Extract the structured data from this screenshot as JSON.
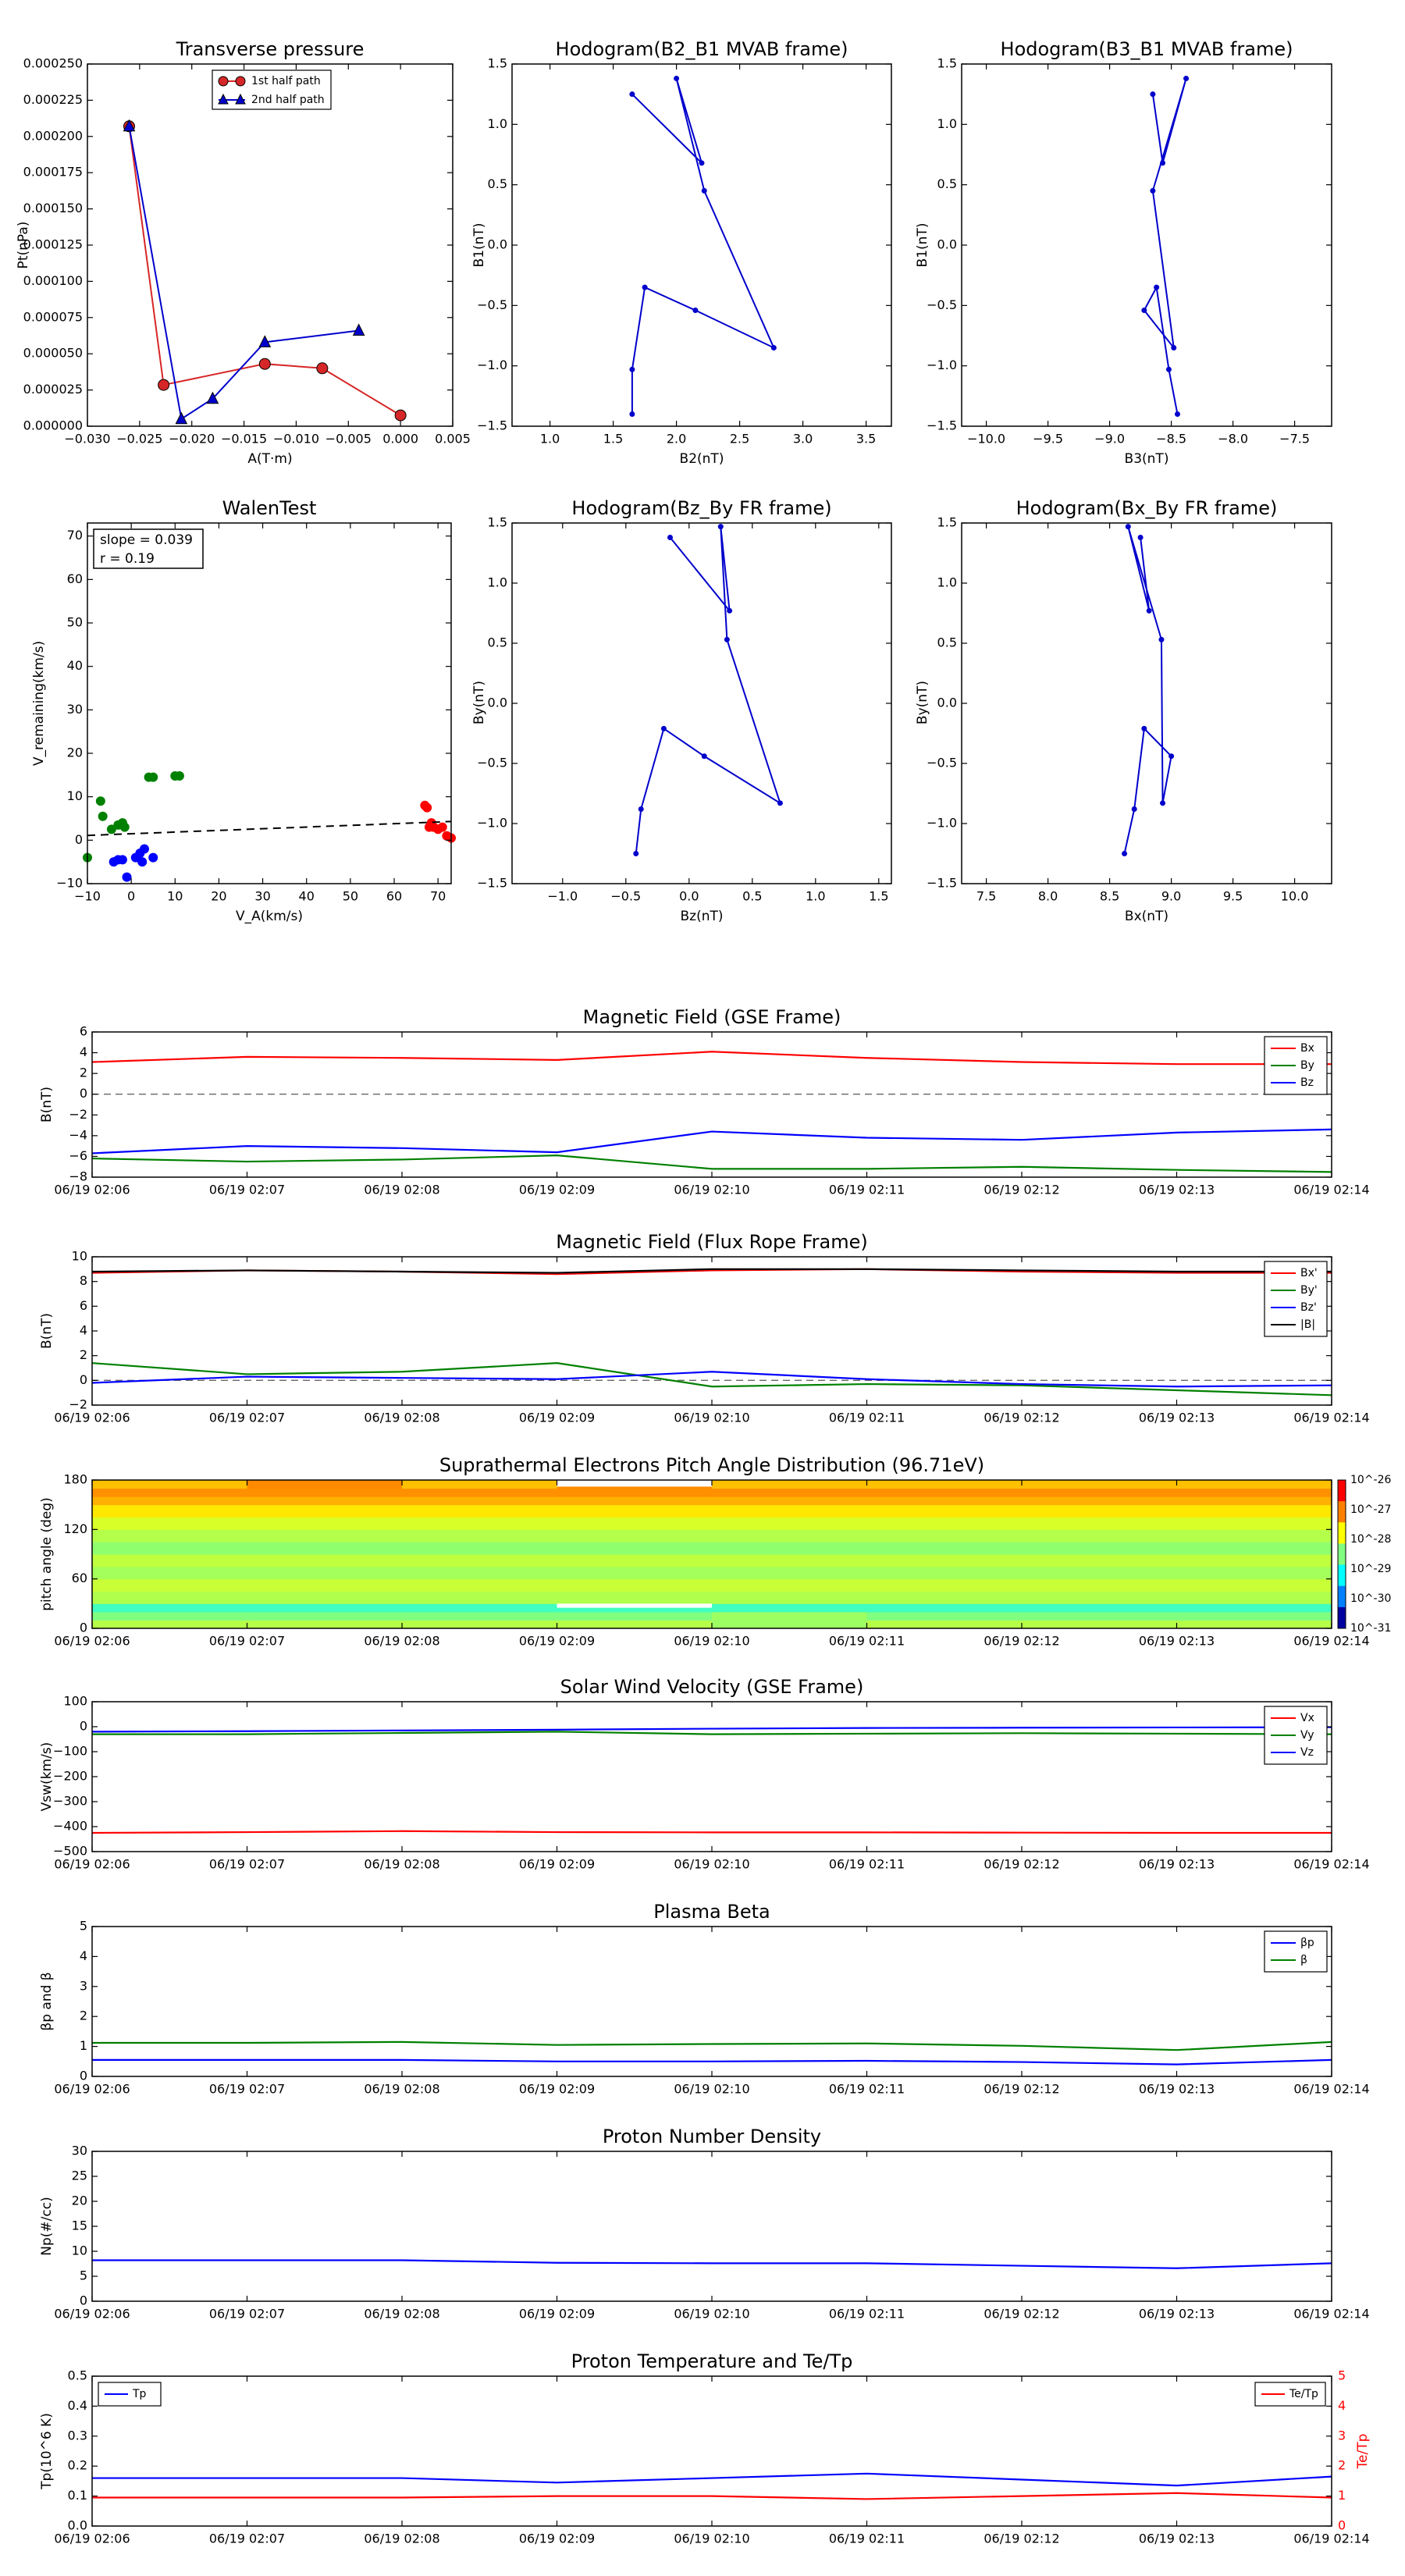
{
  "figure": {
    "background": "#ffffff"
  },
  "chart_data": [
    {
      "id": "tp",
      "type": "scatter",
      "title": "Transverse pressure",
      "xlabel": "A(T·m)",
      "ylabel": "Pt(nPa)",
      "xlim": [
        -0.03,
        0.005
      ],
      "ylim": [
        0,
        0.00025
      ],
      "xticks": [
        -0.03,
        -0.025,
        -0.02,
        -0.015,
        -0.01,
        -0.005,
        0.0,
        0.005
      ],
      "xticklabels": [
        "−0.030",
        "−0.025",
        "−0.020",
        "−0.015",
        "−0.010",
        "−0.005",
        "0.000",
        "0.005"
      ],
      "yticks": [
        0,
        2.5e-05,
        5e-05,
        7.5e-05,
        0.0001,
        0.000125,
        0.00015,
        0.000175,
        0.0002,
        0.000225,
        0.00025
      ],
      "yticklabels": [
        "0.000000",
        "0.000025",
        "0.000050",
        "0.000075",
        "0.000100",
        "0.000125",
        "0.000150",
        "0.000175",
        "0.000200",
        "0.000225",
        "0.000250"
      ],
      "legend": {
        "position": "top-center",
        "entries": [
          "1st half path",
          "2nd half path"
        ]
      },
      "series": [
        {
          "name": "1st half path",
          "color": "#d62728",
          "marker": "circle",
          "x": [
            -0.026,
            -0.0227,
            -0.013,
            -0.0075,
            0.0
          ],
          "y": [
            0.000207,
            2.85e-05,
            4.3e-05,
            4e-05,
            7.5e-06
          ]
        },
        {
          "name": "2nd half path",
          "color": "#0000cc",
          "marker": "triangle",
          "x": [
            -0.026,
            -0.021,
            -0.018,
            -0.013,
            -0.004
          ],
          "y": [
            0.000207,
            5e-06,
            1.9e-05,
            5.8e-05,
            6.6e-05
          ]
        }
      ]
    },
    {
      "id": "h1",
      "type": "line",
      "title": "Hodogram(B2_B1 MVAB frame)",
      "xlabel": "B2(nT)",
      "ylabel": "B1(nT)",
      "xlim": [
        0.7,
        3.7
      ],
      "ylim": [
        -1.5,
        1.5
      ],
      "xticks": [
        1.0,
        1.5,
        2.0,
        2.5,
        3.0,
        3.5
      ],
      "xticklabels": [
        "1.0",
        "1.5",
        "2.0",
        "2.5",
        "3.0",
        "3.5"
      ],
      "yticks": [
        -1.5,
        -1.0,
        -0.5,
        0.0,
        0.5,
        1.0,
        1.5
      ],
      "yticklabels": [
        "−1.5",
        "−1.0",
        "−0.5",
        "0.0",
        "0.5",
        "1.0",
        "1.5"
      ],
      "series": [
        {
          "color": "#0000cc",
          "marker": "dot",
          "x": [
            1.65,
            1.65,
            1.75,
            2.15,
            2.77,
            2.22,
            2.0,
            2.2,
            1.65
          ],
          "y": [
            -1.4,
            -1.03,
            -0.35,
            -0.54,
            -0.85,
            0.45,
            1.38,
            0.68,
            1.25
          ]
        }
      ]
    },
    {
      "id": "h2",
      "type": "line",
      "title": "Hodogram(B3_B1 MVAB frame)",
      "xlabel": "B3(nT)",
      "ylabel": "B1(nT)",
      "xlim": [
        -10.2,
        -7.2
      ],
      "ylim": [
        -1.5,
        1.5
      ],
      "xticks": [
        -10.0,
        -9.5,
        -9.0,
        -8.5,
        -8.0,
        -7.5
      ],
      "xticklabels": [
        "−10.0",
        "−9.5",
        "−9.0",
        "−8.5",
        "−8.0",
        "−7.5"
      ],
      "yticks": [
        -1.5,
        -1.0,
        -0.5,
        0.0,
        0.5,
        1.0,
        1.5
      ],
      "yticklabels": [
        "−1.5",
        "−1.0",
        "−0.5",
        "0.0",
        "0.5",
        "1.0",
        "1.5"
      ],
      "series": [
        {
          "color": "#0000cc",
          "marker": "dot",
          "x": [
            -8.45,
            -8.52,
            -8.62,
            -8.72,
            -8.48,
            -8.65,
            -8.38,
            -8.57,
            -8.65
          ],
          "y": [
            -1.4,
            -1.03,
            -0.35,
            -0.54,
            -0.85,
            0.45,
            1.38,
            0.68,
            1.25
          ]
        }
      ]
    },
    {
      "id": "walen",
      "type": "scatter",
      "title": "WalenTest",
      "xlabel": "V_A(km/s)",
      "ylabel": "V_remaining(km/s)",
      "xlim": [
        -10,
        73
      ],
      "ylim": [
        -10,
        73
      ],
      "xticks": [
        -10,
        0,
        10,
        20,
        30,
        40,
        50,
        60,
        70
      ],
      "xticklabels": [
        "−10",
        "0",
        "10",
        "20",
        "30",
        "40",
        "50",
        "60",
        "70"
      ],
      "yticks": [
        -10,
        0,
        10,
        20,
        30,
        40,
        50,
        60,
        70
      ],
      "yticklabels": [
        "−10",
        "0",
        "10",
        "20",
        "30",
        "40",
        "50",
        "60",
        "70"
      ],
      "annotation": [
        "slope = 0.039",
        "r = 0.19"
      ],
      "fit_line": {
        "x": [
          -10,
          73
        ],
        "y": [
          1.1,
          4.3
        ]
      },
      "series": [
        {
          "color": "#008000",
          "x": [
            -7,
            -6.5,
            -4.5,
            -3,
            -2,
            -1.5,
            4,
            5,
            10,
            11,
            -10
          ],
          "y": [
            9,
            5.5,
            2.5,
            3.5,
            4,
            3,
            14.5,
            14.5,
            14.8,
            14.8,
            -4
          ]
        },
        {
          "color": "#0000ff",
          "x": [
            -4,
            -3,
            -2,
            -1,
            1,
            2,
            2.5,
            3,
            5
          ],
          "y": [
            -5,
            -4.5,
            -4.5,
            -8.5,
            -4,
            -3,
            -5,
            -2,
            -4
          ]
        },
        {
          "color": "#ff0000",
          "x": [
            67,
            67.5,
            68,
            68.5,
            69,
            70,
            71,
            72,
            73
          ],
          "y": [
            8,
            7.5,
            3,
            4,
            3,
            2.5,
            3,
            1,
            0.5
          ]
        }
      ]
    },
    {
      "id": "h3",
      "type": "line",
      "title": "Hodogram(Bz_By FR frame)",
      "xlabel": "Bz(nT)",
      "ylabel": "By(nT)",
      "xlim": [
        -1.4,
        1.6
      ],
      "ylim": [
        -1.5,
        1.5
      ],
      "xticks": [
        -1.0,
        -0.5,
        0.0,
        0.5,
        1.0,
        1.5
      ],
      "xticklabels": [
        "−1.0",
        "−0.5",
        "0.0",
        "0.5",
        "1.0",
        "1.5"
      ],
      "yticks": [
        -1.5,
        -1.0,
        -0.5,
        0.0,
        0.5,
        1.0,
        1.5
      ],
      "yticklabels": [
        "−1.5",
        "−1.0",
        "−0.5",
        "0.0",
        "0.5",
        "1.0",
        "1.5"
      ],
      "series": [
        {
          "color": "#0000cc",
          "marker": "dot",
          "x": [
            -0.42,
            -0.38,
            -0.2,
            0.12,
            0.72,
            0.3,
            0.25,
            0.32,
            -0.15
          ],
          "y": [
            -1.25,
            -0.88,
            -0.21,
            -0.44,
            -0.83,
            0.53,
            1.47,
            0.77,
            1.38
          ]
        }
      ]
    },
    {
      "id": "h4",
      "type": "line",
      "title": "Hodogram(Bx_By FR frame)",
      "xlabel": "Bx(nT)",
      "ylabel": "By(nT)",
      "xlim": [
        7.3,
        10.3
      ],
      "ylim": [
        -1.5,
        1.5
      ],
      "xticks": [
        7.5,
        8.0,
        8.5,
        9.0,
        9.5,
        10.0
      ],
      "xticklabels": [
        "7.5",
        "8.0",
        "8.5",
        "9.0",
        "9.5",
        "10.0"
      ],
      "yticks": [
        -1.5,
        -1.0,
        -0.5,
        0.0,
        0.5,
        1.0,
        1.5
      ],
      "yticklabels": [
        "−1.5",
        "−1.0",
        "−0.5",
        "0.0",
        "0.5",
        "1.0",
        "1.5"
      ],
      "series": [
        {
          "color": "#0000cc",
          "marker": "dot",
          "x": [
            8.62,
            8.7,
            8.78,
            9.0,
            8.93,
            8.92,
            8.65,
            8.82,
            8.75
          ],
          "y": [
            -1.25,
            -0.88,
            -0.21,
            -0.44,
            -0.83,
            0.53,
            1.47,
            0.77,
            1.38
          ]
        }
      ]
    },
    {
      "id": "mag_gse",
      "type": "line",
      "title": "Magnetic Field (GSE Frame)",
      "ylabel": "B(nT)",
      "ylim": [
        -8,
        6
      ],
      "yticks": [
        -8,
        -6,
        -4,
        -2,
        0,
        2,
        4,
        6
      ],
      "yticklabels": [
        "−8",
        "−6",
        "−4",
        "−2",
        "0",
        "2",
        "4",
        "6"
      ],
      "zero_line": true,
      "legend": {
        "position": "top-right",
        "entries": [
          "Bx",
          "By",
          "Bz"
        ]
      },
      "series": [
        {
          "name": "Bx",
          "color": "#ff0000",
          "values": [
            3.1,
            3.6,
            3.5,
            3.3,
            4.1,
            3.5,
            3.1,
            2.9,
            2.9
          ]
        },
        {
          "name": "By",
          "color": "#008000",
          "values": [
            -6.2,
            -6.5,
            -6.3,
            -5.9,
            -7.2,
            -7.2,
            -7.0,
            -7.3,
            -7.5
          ]
        },
        {
          "name": "Bz",
          "color": "#0000ff",
          "values": [
            -5.7,
            -5.0,
            -5.2,
            -5.6,
            -3.6,
            -4.2,
            -4.4,
            -3.7,
            -3.4
          ]
        }
      ]
    },
    {
      "id": "mag_fr",
      "type": "line",
      "title": "Magnetic Field (Flux Rope Frame)",
      "ylabel": "B(nT)",
      "ylim": [
        -2,
        10
      ],
      "yticks": [
        -2,
        0,
        2,
        4,
        6,
        8,
        10
      ],
      "yticklabels": [
        "−2",
        "0",
        "2",
        "4",
        "6",
        "8",
        "10"
      ],
      "zero_line": true,
      "legend": {
        "position": "top-right",
        "entries": [
          "Bx'",
          "By'",
          "Bz'",
          "|B|"
        ]
      },
      "series": [
        {
          "name": "Bx'",
          "color": "#ff0000",
          "values": [
            8.7,
            8.9,
            8.8,
            8.6,
            8.9,
            9.0,
            8.8,
            8.7,
            8.7
          ]
        },
        {
          "name": "By'",
          "color": "#008000",
          "values": [
            1.4,
            0.5,
            0.7,
            1.4,
            -0.5,
            -0.3,
            -0.4,
            -0.8,
            -1.2
          ]
        },
        {
          "name": "Bz'",
          "color": "#0000ff",
          "values": [
            -0.2,
            0.3,
            0.2,
            0.1,
            0.7,
            0.1,
            -0.3,
            -0.5,
            -0.4
          ]
        },
        {
          "name": "|B|",
          "color": "#000000",
          "values": [
            8.8,
            8.9,
            8.8,
            8.7,
            9.0,
            9.0,
            8.9,
            8.8,
            8.8
          ]
        }
      ]
    },
    {
      "id": "pad",
      "type": "heatmap",
      "title": "Suprathermal Electrons Pitch Angle Distribution (96.71eV)",
      "ylabel": "pitch angle (deg)",
      "ylim": [
        0,
        180
      ],
      "yticks": [
        0,
        60,
        120,
        180
      ],
      "yticklabels": [
        "0",
        "60",
        "120",
        "180"
      ],
      "colorbar": {
        "ticks": [
          "10^-26",
          "10^-27",
          "10^-28",
          "10^-29",
          "10^-30",
          "10^-31"
        ]
      }
    },
    {
      "id": "vsw",
      "type": "line",
      "title": "Solar Wind Velocity (GSE Frame)",
      "ylabel": "Vsw(km/s)",
      "ylim": [
        -500,
        100
      ],
      "yticks": [
        -500,
        -400,
        -300,
        -200,
        -100,
        0,
        100
      ],
      "yticklabels": [
        "−500",
        "−400",
        "−300",
        "−200",
        "−100",
        "0",
        "100"
      ],
      "legend": {
        "position": "top-right",
        "entries": [
          "Vx",
          "Vy",
          "Vz"
        ]
      },
      "series": [
        {
          "name": "Vx",
          "color": "#ff0000",
          "values": [
            -425,
            -422,
            -418,
            -422,
            -423,
            -423,
            -424,
            -425,
            -425
          ]
        },
        {
          "name": "Vy",
          "color": "#008000",
          "values": [
            -30,
            -30,
            -25,
            -20,
            -30,
            -28,
            -26,
            -28,
            -30
          ]
        },
        {
          "name": "Vz",
          "color": "#0000ff",
          "values": [
            -20,
            -18,
            -15,
            -12,
            -8,
            -5,
            -4,
            -3,
            -2
          ]
        }
      ]
    },
    {
      "id": "beta",
      "type": "line",
      "title": "Plasma Beta",
      "ylabel": "βp and β",
      "ylim": [
        0,
        5
      ],
      "yticks": [
        0,
        1,
        2,
        3,
        4,
        5
      ],
      "yticklabels": [
        "0",
        "1",
        "2",
        "3",
        "4",
        "5"
      ],
      "legend": {
        "position": "top-right",
        "entries": [
          "βp",
          "β"
        ]
      },
      "series": [
        {
          "name": "βp",
          "color": "#0000ff",
          "values": [
            0.55,
            0.55,
            0.55,
            0.5,
            0.5,
            0.52,
            0.48,
            0.4,
            0.55
          ]
        },
        {
          "name": "β",
          "color": "#008000",
          "values": [
            1.12,
            1.12,
            1.15,
            1.05,
            1.08,
            1.1,
            1.02,
            0.88,
            1.15
          ]
        }
      ]
    },
    {
      "id": "np",
      "type": "line",
      "title": "Proton Number Density",
      "ylabel": "Np(#/cc)",
      "ylim": [
        0,
        30
      ],
      "yticks": [
        0,
        5,
        10,
        15,
        20,
        25,
        30
      ],
      "yticklabels": [
        "0",
        "5",
        "10",
        "15",
        "20",
        "25",
        "30"
      ],
      "series": [
        {
          "color": "#0000ff",
          "values": [
            8.2,
            8.2,
            8.2,
            7.7,
            7.6,
            7.6,
            7.1,
            6.6,
            7.6
          ]
        }
      ]
    },
    {
      "id": "tp_temp",
      "type": "line",
      "title": "Proton Temperature and Te/Tp",
      "ylabel": "Tp(10^6 K)",
      "ylim": [
        0,
        0.5
      ],
      "yticks": [
        0,
        0.1,
        0.2,
        0.3,
        0.4,
        0.5
      ],
      "yticklabels": [
        "0.0",
        "0.1",
        "0.2",
        "0.3",
        "0.4",
        "0.5"
      ],
      "ylabel2": "Te/Tp",
      "ylim2": [
        0,
        5
      ],
      "yticks2": [
        0,
        1,
        2,
        3,
        4,
        5
      ],
      "yticklabels2": [
        "0",
        "1",
        "2",
        "3",
        "4",
        "5"
      ],
      "legend_left": "Tp",
      "legend_right": "Te/Tp",
      "series": [
        {
          "name": "Tp",
          "color": "#0000ff",
          "axis": "left",
          "values": [
            0.16,
            0.16,
            0.16,
            0.145,
            0.16,
            0.175,
            0.155,
            0.135,
            0.165
          ]
        },
        {
          "name": "Te/Tp",
          "color": "#ff0000",
          "axis": "right",
          "values": [
            0.95,
            0.95,
            0.95,
            1.0,
            1.0,
            0.9,
            1.0,
            1.1,
            0.95
          ]
        }
      ]
    }
  ],
  "time_axis": {
    "ticks": [
      "06/19 02:06",
      "06/19 02:07",
      "06/19 02:08",
      "06/19 02:09",
      "06/19 02:10",
      "06/19 02:11",
      "06/19 02:12",
      "06/19 02:13",
      "06/19 02:14"
    ]
  }
}
